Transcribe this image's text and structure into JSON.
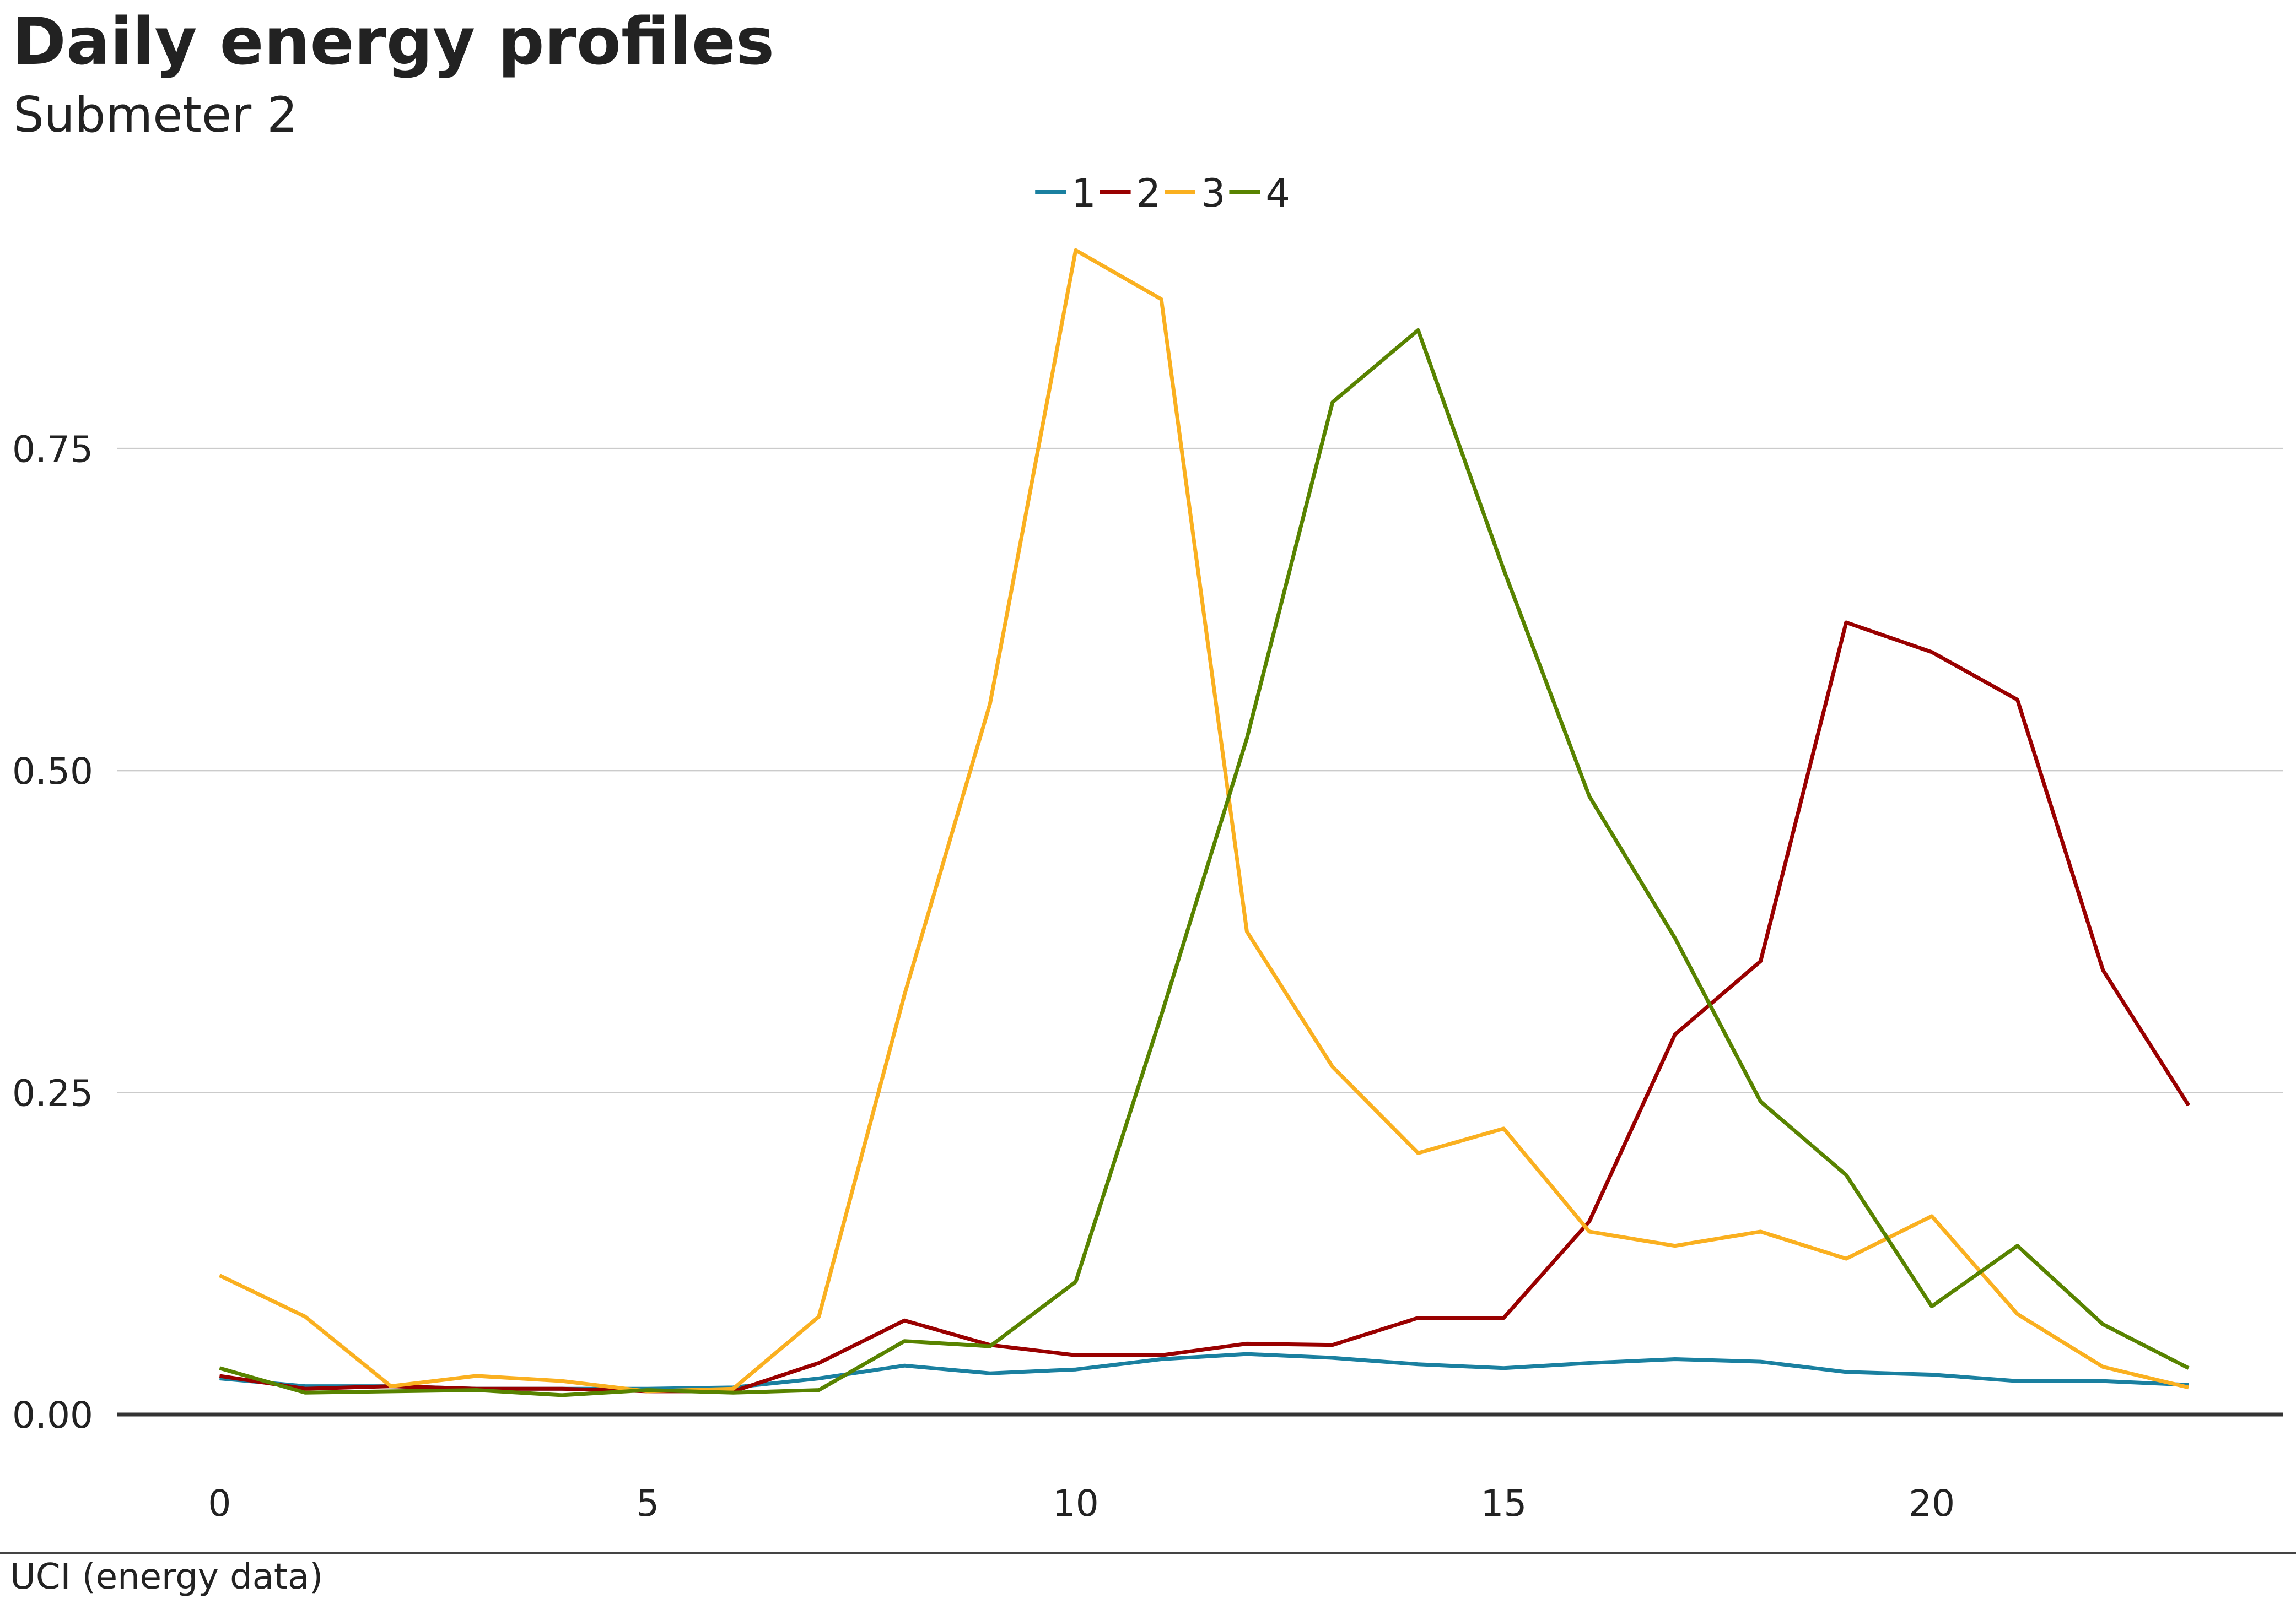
{
  "header": {
    "title": "Daily energy profiles",
    "subtitle": "Submeter 2"
  },
  "source": "UCI (energy data)",
  "colors": {
    "grid": "#cbcbcb",
    "axis": "#333333"
  },
  "chart_data": {
    "type": "line",
    "title": "Daily energy profiles",
    "subtitle": "Submeter 2",
    "xlabel": "",
    "ylabel": "",
    "xlim": [
      -1.2,
      24.1
    ],
    "ylim": [
      0,
      0.97
    ],
    "x_ticks": [
      0,
      5,
      10,
      15,
      20
    ],
    "x_tick_labels": [
      "0",
      "5",
      "10",
      "15",
      "20"
    ],
    "y_ticks": [
      0,
      0.25,
      0.5,
      0.75
    ],
    "y_tick_labels": [
      "0.00",
      "0.25",
      "0.50",
      "0.75"
    ],
    "grid": "horizontal",
    "legend_position": "top-center",
    "x": [
      0,
      1,
      2,
      3,
      4,
      5,
      6,
      7,
      8,
      9,
      10,
      11,
      12,
      13,
      14,
      15,
      16,
      17,
      18,
      19,
      20,
      21,
      22,
      23
    ],
    "series": [
      {
        "name": "1",
        "color": "#1a80a0",
        "values": [
          0.028,
          0.022,
          0.022,
          0.02,
          0.02,
          0.02,
          0.021,
          0.028,
          0.038,
          0.032,
          0.035,
          0.043,
          0.047,
          0.044,
          0.039,
          0.036,
          0.04,
          0.043,
          0.041,
          0.033,
          0.031,
          0.026,
          0.026,
          0.023
        ]
      },
      {
        "name": "2",
        "color": "#990000",
        "values": [
          0.03,
          0.02,
          0.022,
          0.02,
          0.02,
          0.018,
          0.018,
          0.04,
          0.073,
          0.054,
          0.046,
          0.046,
          0.055,
          0.054,
          0.075,
          0.075,
          0.15,
          0.295,
          0.352,
          0.615,
          0.592,
          0.555,
          0.345,
          0.24
        ]
      },
      {
        "name": "3",
        "color": "#fab020",
        "values": [
          0.108,
          0.076,
          0.022,
          0.03,
          0.026,
          0.018,
          0.02,
          0.076,
          0.326,
          0.552,
          0.904,
          0.866,
          0.375,
          0.27,
          0.203,
          0.222,
          0.142,
          0.131,
          0.142,
          0.121,
          0.154,
          0.078,
          0.037,
          0.021
        ]
      },
      {
        "name": "4",
        "color": "#588300",
        "values": [
          0.036,
          0.017,
          0.018,
          0.019,
          0.015,
          0.019,
          0.017,
          0.019,
          0.057,
          0.053,
          0.103,
          0.31,
          0.525,
          0.786,
          0.842,
          0.656,
          0.48,
          0.37,
          0.243,
          0.186,
          0.084,
          0.131,
          0.07,
          0.036
        ]
      }
    ]
  }
}
